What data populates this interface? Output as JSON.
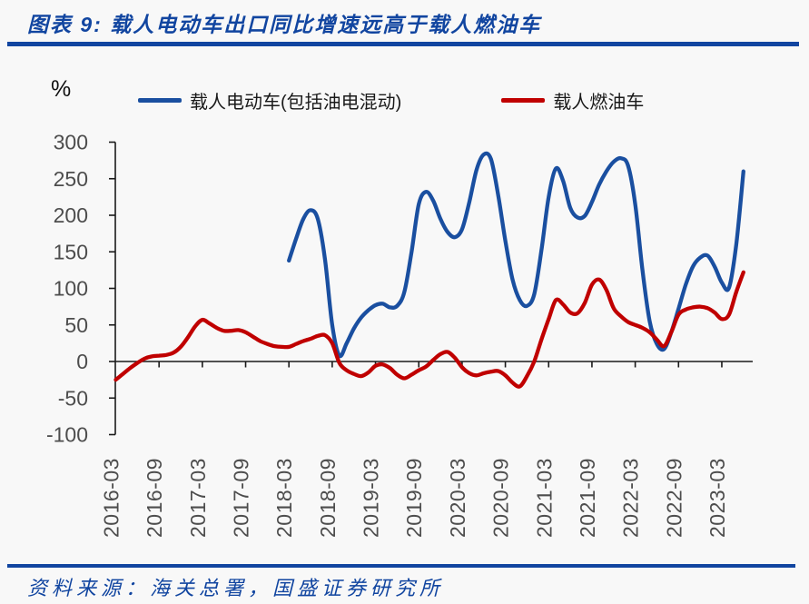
{
  "theme": {
    "accent_blue": "#1145a0",
    "background": "#f8f8f8",
    "line_blue": "#1a4fa0",
    "line_red": "#c00000"
  },
  "header": {
    "title": "图表 9: 载人电动车出口同比增速远高于载人燃油车"
  },
  "footer": {
    "source": "资料来源：海关总署，国盛证券研究所"
  },
  "chart_data": {
    "type": "line",
    "title": "载人电动车出口同比增速远高于载人燃油车",
    "unit_label": "%",
    "ylabel": "%",
    "ylim": [
      -100,
      300
    ],
    "ytick_step": 50,
    "grid": false,
    "legend_position": "top",
    "x_unit": "month",
    "x_start": "2016-03",
    "x_end": "2023-06",
    "months_per_tick": 6,
    "x_tick_labels": [
      "2016-03",
      "2016-09",
      "2017-03",
      "2017-09",
      "2018-03",
      "2018-09",
      "2019-03",
      "2019-09",
      "2020-03",
      "2020-09",
      "2021-03",
      "2021-09",
      "2022-03",
      "2022-09",
      "2023-03"
    ],
    "axis_color": "#1a1a1a",
    "tick_label_color": "#4d4d4d",
    "series": [
      {
        "name": "载人电动车(包括油电混动)",
        "color": "#1a4fa0",
        "start_month": "2018-03",
        "start_index": 24,
        "values": [
          138,
          168,
          195,
          207,
          195,
          140,
          50,
          8,
          25,
          45,
          60,
          70,
          77,
          79,
          74,
          76,
          95,
          150,
          215,
          232,
          220,
          195,
          177,
          170,
          181,
          218,
          262,
          283,
          277,
          228,
          165,
          112,
          84,
          76,
          92,
          152,
          225,
          264,
          247,
          210,
          197,
          199,
          218,
          242,
          260,
          273,
          278,
          268,
          215,
          125,
          55,
          24,
          17,
          40,
          72,
          105,
          130,
          142,
          145,
          130,
          108,
          101,
          160,
          260
        ]
      },
      {
        "name": "载人燃油车",
        "color": "#c00000",
        "start_month": "2016-03",
        "start_index": 0,
        "values": [
          -25,
          -17,
          -9,
          -2,
          4,
          7,
          8,
          9,
          12,
          20,
          33,
          48,
          57,
          52,
          46,
          42,
          42,
          43,
          40,
          34,
          28,
          24,
          21,
          20,
          20,
          24,
          28,
          31,
          35,
          36,
          25,
          -2,
          -12,
          -17,
          -20,
          -15,
          -6,
          -4,
          -9,
          -18,
          -23,
          -18,
          -12,
          -7,
          2,
          10,
          13,
          5,
          -8,
          -16,
          -19,
          -16,
          -14,
          -13,
          -19,
          -29,
          -34,
          -20,
          0,
          30,
          58,
          84,
          78,
          67,
          66,
          80,
          105,
          112,
          98,
          73,
          62,
          54,
          50,
          46,
          40,
          30,
          21,
          40,
          64,
          71,
          74,
          75,
          73,
          67,
          58,
          64,
          95,
          122
        ]
      }
    ]
  }
}
